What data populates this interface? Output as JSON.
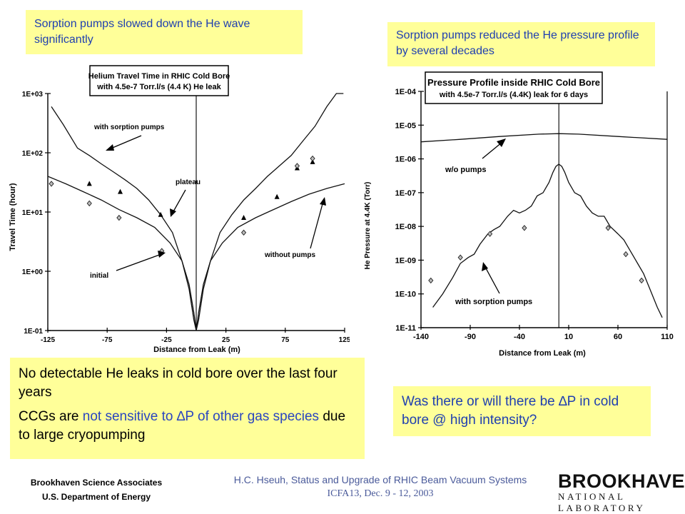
{
  "callouts": {
    "left": "Sorption pumps slowed down the He wave significantly",
    "right": "Sorption pumps reduced the He pressure profile by several decades",
    "bottom_left": {
      "line1": "No detectable He leaks in cold bore over the last four years",
      "line2_a": "CCGs are ",
      "line2_b": "not sensitive to ",
      "line2_delta": "∆",
      "line2_c": "P of other gas species",
      "line2_d": " due to large cryopumping"
    },
    "bottom_right": {
      "a": "Was there or will there be ",
      "delta": "∆",
      "b": "P in cold bore @ high intensity?"
    }
  },
  "footer": {
    "org1": "Brookhaven Science Associates",
    "org2": "U.S. Department of Energy",
    "talk": "H.C. Hseuh, Status and Upgrade of RHIC Beam Vacuum Systems",
    "conf": "ICFA13, Dec. 9 - 12, 2003",
    "logo_big": "BROOKHAVEN",
    "logo_small": "NATIONAL LABORATORY"
  },
  "chart_data": [
    {
      "type": "line",
      "title": "Helium Travel Time in RHIC Cold Bore",
      "subtitle": "with 4.5e-7 Torr.l/s (4.4 K) He leak",
      "xlabel": "Distance from Leak (m)",
      "ylabel": "Travel Time (hour)",
      "xlim": [
        -125,
        125
      ],
      "ylim": [
        0.1,
        1000
      ],
      "yscale": "log",
      "x_ticks": [
        "-125",
        "-75",
        "-25",
        "25",
        "75",
        "125"
      ],
      "y_ticks": [
        "1E-01",
        "1E+00",
        "1E+01",
        "1E+02",
        "1E+03"
      ],
      "series": [
        {
          "name": "with sorption pumps",
          "style": "line",
          "x": [
            -122,
            -112,
            -100,
            -90,
            -80,
            -70,
            -60,
            -50,
            -40,
            -30,
            -20,
            -12,
            -6,
            -2,
            0,
            2,
            6,
            12,
            20,
            30,
            40,
            50,
            60,
            70,
            80,
            90,
            100,
            110,
            118,
            124
          ],
          "y": [
            600,
            300,
            120,
            90,
            65,
            48,
            35,
            25,
            16,
            9,
            4.5,
            1.5,
            0.5,
            0.15,
            0.1,
            0.15,
            0.5,
            1.5,
            4.5,
            9,
            16,
            25,
            40,
            60,
            90,
            160,
            280,
            600,
            1000,
            1000
          ]
        },
        {
          "name": "without pumps",
          "style": "line",
          "x": [
            -125,
            -110,
            -95,
            -80,
            -65,
            -50,
            -35,
            -22,
            -12,
            -6,
            -2,
            0,
            2,
            6,
            12,
            22,
            35,
            50,
            65,
            80,
            95,
            110,
            125
          ],
          "y": [
            40,
            30,
            22,
            16,
            11,
            8,
            5.5,
            3,
            1.5,
            0.6,
            0.2,
            0.1,
            0.2,
            0.6,
            1.5,
            3,
            5.5,
            8,
            11,
            15,
            20,
            25,
            30
          ]
        },
        {
          "name": "triangles",
          "style": "marker-triangle",
          "x": [
            -90,
            -64,
            -30,
            40,
            68,
            85,
            98
          ],
          "y": [
            30,
            22,
            9,
            8,
            18,
            55,
            70
          ]
        },
        {
          "name": "initial",
          "style": "marker-diamond",
          "x": [
            -122,
            -90,
            -65,
            -29,
            40,
            85,
            98
          ],
          "y": [
            30,
            14,
            8,
            2.2,
            4.5,
            60,
            80
          ]
        }
      ],
      "annotations": [
        "with sorption pumps",
        "plateau",
        "without pumps",
        "initial"
      ]
    },
    {
      "type": "line",
      "title": "Pressure Profile inside RHIC Cold Bore",
      "subtitle": "with 4.5e-7 Torr.l/s (4.4K) leak for 6 days",
      "xlabel": "Distance from Leak (m)",
      "ylabel": "He Pressure at 4.4K (Torr)",
      "xlim": [
        -140,
        110
      ],
      "ylim": [
        1e-11,
        0.0001
      ],
      "yscale": "log",
      "x_ticks": [
        "-140",
        "-90",
        "-40",
        "10",
        "60",
        "110"
      ],
      "y_ticks": [
        "1E-11",
        "1E-10",
        "1E-09",
        "1E-08",
        "1E-07",
        "1E-06",
        "1E-05",
        "1E-04"
      ],
      "series": [
        {
          "name": "w/o pumps",
          "style": "line",
          "x": [
            -140,
            -100,
            -60,
            -20,
            0,
            20,
            60,
            110
          ],
          "y": [
            3.2e-06,
            3.8e-06,
            4.6e-06,
            5.4e-06,
            5.6e-06,
            5.4e-06,
            4.6e-06,
            3.8e-06
          ]
        },
        {
          "name": "with sorption pumps",
          "style": "line",
          "x": [
            -128,
            -118,
            -108,
            -100,
            -92,
            -86,
            -80,
            -72,
            -66,
            -60,
            -52,
            -46,
            -40,
            -34,
            -28,
            -22,
            -16,
            -10,
            -6,
            -3,
            0,
            3,
            6,
            10,
            16,
            22,
            28,
            34,
            40,
            46,
            52,
            60,
            66,
            72,
            80,
            86,
            92,
            100,
            105
          ],
          "y": [
            4e-11,
            1e-10,
            3e-10,
            8e-10,
            1.2e-09,
            1.5e-09,
            3e-09,
            6e-09,
            8e-09,
            1e-08,
            2e-08,
            3e-08,
            2.5e-08,
            3e-08,
            4e-08,
            8e-08,
            1e-07,
            2e-07,
            4e-07,
            6e-07,
            7e-07,
            6e-07,
            4e-07,
            2e-07,
            1e-07,
            8e-08,
            4e-08,
            2.5e-08,
            2e-08,
            2e-08,
            1e-08,
            6e-09,
            4e-09,
            2e-09,
            8e-10,
            4e-10,
            1.5e-10,
            4e-11,
            2e-11
          ]
        },
        {
          "name": "markers",
          "style": "marker-diamond",
          "x": [
            -130,
            -100,
            -70,
            -35,
            50,
            68,
            84
          ],
          "y": [
            2.5e-10,
            1.2e-09,
            6e-09,
            9e-09,
            9e-09,
            1.5e-09,
            2.5e-10
          ]
        }
      ],
      "annotations": [
        "w/o pumps",
        "with sorption pumps"
      ]
    }
  ]
}
